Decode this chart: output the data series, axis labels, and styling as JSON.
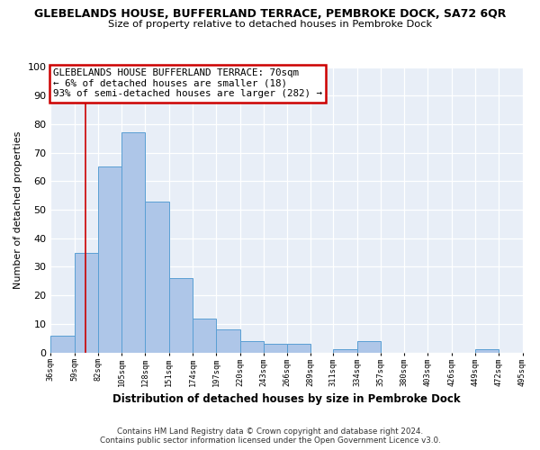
{
  "title_line1": "GLEBELANDS HOUSE, BUFFERLAND TERRACE, PEMBROKE DOCK, SA72 6QR",
  "title_line2": "Size of property relative to detached houses in Pembroke Dock",
  "xlabel": "Distribution of detached houses by size in Pembroke Dock",
  "ylabel": "Number of detached properties",
  "bins": [
    36,
    59,
    82,
    105,
    128,
    151,
    174,
    197,
    220,
    243,
    266,
    289,
    311,
    334,
    357,
    380,
    403,
    426,
    449,
    472,
    495
  ],
  "counts": [
    6,
    35,
    65,
    77,
    53,
    26,
    12,
    8,
    4,
    3,
    3,
    0,
    1,
    4,
    0,
    0,
    0,
    0,
    1,
    0
  ],
  "bar_color": "#aec6e8",
  "bar_edge_color": "#5a9fd4",
  "vline_x": 70,
  "vline_color": "#cc0000",
  "annotation_title": "GLEBELANDS HOUSE BUFFERLAND TERRACE: 70sqm",
  "annotation_line2": "← 6% of detached houses are smaller (18)",
  "annotation_line3": "93% of semi-detached houses are larger (282) →",
  "annotation_box_color": "#ffffff",
  "annotation_box_edge_color": "#cc0000",
  "ylim": [
    0,
    100
  ],
  "tick_labels": [
    "36sqm",
    "59sqm",
    "82sqm",
    "105sqm",
    "128sqm",
    "151sqm",
    "174sqm",
    "197sqm",
    "220sqm",
    "243sqm",
    "266sqm",
    "289sqm",
    "311sqm",
    "334sqm",
    "357sqm",
    "380sqm",
    "403sqm",
    "426sqm",
    "449sqm",
    "472sqm",
    "495sqm"
  ],
  "footer_line1": "Contains HM Land Registry data © Crown copyright and database right 2024.",
  "footer_line2": "Contains public sector information licensed under the Open Government Licence v3.0.",
  "fig_bg_color": "#ffffff",
  "plot_bg_color": "#e8eef7",
  "grid_color": "#ffffff"
}
